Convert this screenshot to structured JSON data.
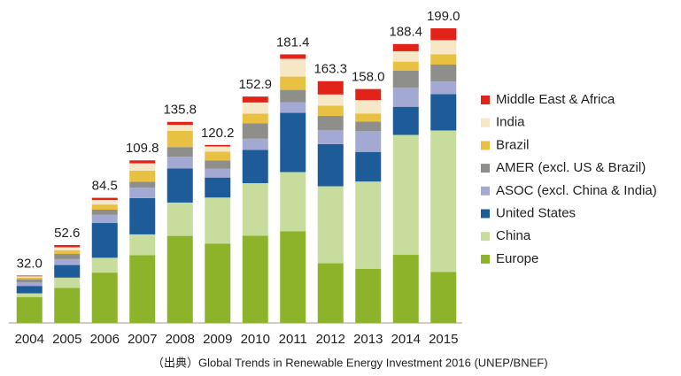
{
  "chart_data": {
    "type": "stacked_bar",
    "categories": [
      "2004",
      "2005",
      "2006",
      "2007",
      "2008",
      "2009",
      "2010",
      "2011",
      "2012",
      "2013",
      "2014",
      "2015"
    ],
    "totals": [
      32.0,
      52.6,
      84.5,
      109.8,
      135.8,
      120.2,
      152.9,
      181.4,
      163.3,
      158.0,
      188.4,
      199.0
    ],
    "total_labels": [
      "32.0",
      "52.6",
      "84.5",
      "109.8",
      "135.8",
      "120.2",
      "152.9",
      "181.4",
      "163.3",
      "158.0",
      "188.4",
      "199.0"
    ],
    "series": [
      {
        "name": "Europe",
        "color": "#8db32b",
        "values": [
          17.5,
          23.6,
          34,
          45.8,
          58.8,
          53.5,
          58.9,
          61.9,
          40.3,
          36.5,
          46,
          34.5
        ]
      },
      {
        "name": "China",
        "color": "#c8dc9e",
        "values": [
          2.5,
          7,
          10,
          14,
          22.5,
          31.2,
          35.5,
          40,
          52,
          59,
          81,
          95.5
        ]
      },
      {
        "name": "United States",
        "color": "#1d5c98",
        "values": [
          5,
          8.5,
          23.5,
          24.5,
          23,
          13.5,
          22.5,
          40,
          28.5,
          20,
          19,
          24.5
        ]
      },
      {
        "name": "ASOC (excl. China & India)",
        "color": "#a4a9d3",
        "values": [
          2.5,
          4,
          5.5,
          7,
          8,
          6,
          7.5,
          7,
          9.5,
          14,
          13,
          8.5
        ]
      },
      {
        "name": "AMER (excl. US & Brazil)",
        "color": "#8e8e8a",
        "values": [
          2,
          3.5,
          3.5,
          4,
          6.5,
          5.5,
          10.5,
          8.5,
          9.5,
          6.5,
          11.5,
          11.5
        ]
      },
      {
        "name": "Brazil",
        "color": "#e9c142",
        "values": [
          1,
          2.5,
          3.5,
          7.5,
          11,
          6,
          6.5,
          9,
          7,
          5.5,
          6,
          7
        ]
      },
      {
        "name": "India",
        "color": "#f6e7c6",
        "values": [
          1,
          2,
          3,
          5,
          4,
          3.5,
          7.5,
          12,
          7.5,
          9,
          7,
          9.5
        ]
      },
      {
        "name": "Middle East & Africa",
        "color": "#e2231a",
        "values": [
          0.5,
          1.5,
          1.5,
          2,
          2,
          1,
          4,
          3,
          9,
          7.5,
          4.9,
          8
        ]
      }
    ],
    "source": "（出典）Global Trends in Renewable Energy Investment 2016 (UNEP/BNEF)"
  }
}
